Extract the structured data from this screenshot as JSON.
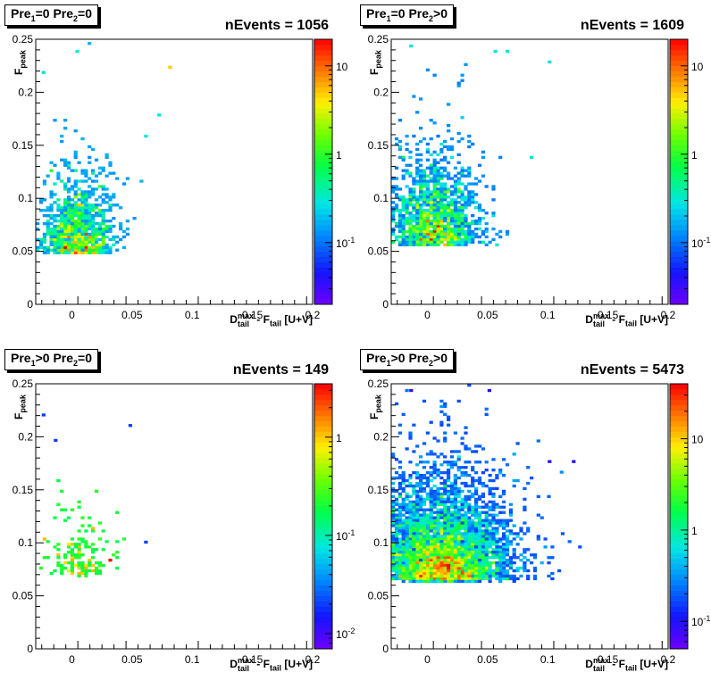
{
  "chart_data": [
    {
      "type": "heatmap",
      "title_parts": [
        "Pre",
        "1",
        "=0  Pre",
        "2",
        "=0"
      ],
      "nevents_label": "nEvents = 1056",
      "xlabel_parts": [
        "D",
        "tail",
        "max",
        " - F",
        "tail",
        " [U+V]"
      ],
      "ylabel_parts": [
        "F",
        "peak"
      ],
      "xlim": [
        -0.03,
        0.2
      ],
      "ylim": [
        0,
        0.25
      ],
      "xticks": [
        "0",
        "0.05",
        "0.1",
        "0.15",
        "0.2"
      ],
      "yticks": [
        "0",
        "0.05",
        "0.1",
        "0.15",
        "0.2",
        "0.25"
      ],
      "colorbar": {
        "scale": "log",
        "min": 0.02,
        "max": 20,
        "labels": [
          {
            "v": 0.1,
            "t": "10",
            "sup": "-1"
          },
          {
            "v": 1,
            "t": "1"
          },
          {
            "v": 10,
            "t": "10"
          }
        ]
      },
      "cluster": {
        "cx": 0.005,
        "cy": 0.06,
        "sx": 0.012,
        "sy": 0.035,
        "n": 1056
      },
      "outliers": [
        [
          0.08,
          0.225,
          5
        ],
        [
          0.003,
          0.24,
          0.3
        ],
        [
          0.071,
          0.18,
          0.3
        ],
        [
          0.06,
          0.16,
          0.3
        ],
        [
          -0.025,
          0.22,
          0.3
        ]
      ]
    },
    {
      "type": "heatmap",
      "title_parts": [
        "Pre",
        "1",
        "=0  Pre",
        "2",
        ">0"
      ],
      "nevents_label": "nEvents = 1609",
      "xlabel_parts": [
        "D",
        "tail",
        "max",
        " - F",
        "tail",
        " [U+V]"
      ],
      "ylabel_parts": [
        "F",
        "peak"
      ],
      "xlim": [
        -0.03,
        0.2
      ],
      "ylim": [
        0,
        0.25
      ],
      "xticks": [
        "0",
        "0.05",
        "0.1",
        "0.15",
        "0.2"
      ],
      "yticks": [
        "0",
        "0.05",
        "0.1",
        "0.15",
        "0.2",
        "0.25"
      ],
      "colorbar": {
        "scale": "log",
        "min": 0.02,
        "max": 20,
        "labels": [
          {
            "v": 0.1,
            "t": "10",
            "sup": "-1"
          },
          {
            "v": 1,
            "t": "1"
          },
          {
            "v": 10,
            "t": "10"
          }
        ]
      },
      "cluster": {
        "cx": 0.005,
        "cy": 0.07,
        "sx": 0.015,
        "sy": 0.04,
        "n": 1609
      },
      "outliers": [
        [
          0.1,
          0.23,
          0.3
        ],
        [
          0.065,
          0.24,
          0.3
        ],
        [
          0.055,
          0.24,
          0.3
        ],
        [
          0.085,
          0.14,
          0.3
        ],
        [
          -0.015,
          0.245,
          0.3
        ]
      ]
    },
    {
      "type": "heatmap",
      "title_parts": [
        "Pre",
        "1",
        ">0  Pre",
        "2",
        "=0"
      ],
      "nevents_label": "nEvents = 149",
      "xlabel_parts": [
        "D",
        "tail",
        "max",
        " - F",
        "tail",
        " [U+V]"
      ],
      "ylabel_parts": [
        "F",
        "peak"
      ],
      "xlim": [
        -0.03,
        0.2
      ],
      "ylim": [
        0,
        0.25
      ],
      "xticks": [
        "0",
        "0.05",
        "0.1",
        "0.15",
        "0.2"
      ],
      "yticks": [
        "0",
        "0.05",
        "0.1",
        "0.15",
        "0.2",
        "0.25"
      ],
      "colorbar": {
        "scale": "log",
        "min": 0.007,
        "max": 3.5,
        "labels": [
          {
            "v": 0.01,
            "t": "10",
            "sup": "-2"
          },
          {
            "v": 0.1,
            "t": "10",
            "sup": "-1"
          },
          {
            "v": 1,
            "t": "1"
          }
        ]
      },
      "cluster": {
        "cx": 0.008,
        "cy": 0.08,
        "sx": 0.012,
        "sy": 0.03,
        "n": 149
      },
      "outliers": [
        [
          -0.025,
          0.222,
          0.02
        ],
        [
          0.047,
          0.212,
          0.02
        ],
        [
          -0.015,
          0.198,
          0.02
        ],
        [
          0.06,
          0.102,
          0.02
        ]
      ]
    },
    {
      "type": "heatmap",
      "title_parts": [
        "Pre",
        "1",
        ">0  Pre",
        "2",
        ">0"
      ],
      "nevents_label": "nEvents = 5473",
      "xlabel_parts": [
        "D",
        "tail",
        "max",
        " - F",
        "tail",
        " [U+V]"
      ],
      "ylabel_parts": [
        "F",
        "peak"
      ],
      "xlim": [
        -0.03,
        0.2
      ],
      "ylim": [
        0,
        0.25
      ],
      "xticks": [
        "0",
        "0.05",
        "0.1",
        "0.15",
        "0.2"
      ],
      "yticks": [
        "0",
        "0.05",
        "0.1",
        "0.15",
        "0.2",
        "0.25"
      ],
      "colorbar": {
        "scale": "log",
        "min": 0.05,
        "max": 40,
        "labels": [
          {
            "v": 0.1,
            "t": "10",
            "sup": "-1"
          },
          {
            "v": 1,
            "t": "1"
          },
          {
            "v": 10,
            "t": "10"
          }
        ]
      },
      "cluster": {
        "cx": 0.01,
        "cy": 0.08,
        "sx": 0.022,
        "sy": 0.045,
        "n": 5473
      },
      "outliers": [
        [
          0.12,
          0.178,
          0.1
        ],
        [
          0.11,
          0.168,
          0.3
        ],
        [
          0.1,
          0.178,
          0.1
        ],
        [
          0.05,
          0.245,
          0.1
        ],
        [
          -0.015,
          0.245,
          0.1
        ]
      ]
    }
  ]
}
